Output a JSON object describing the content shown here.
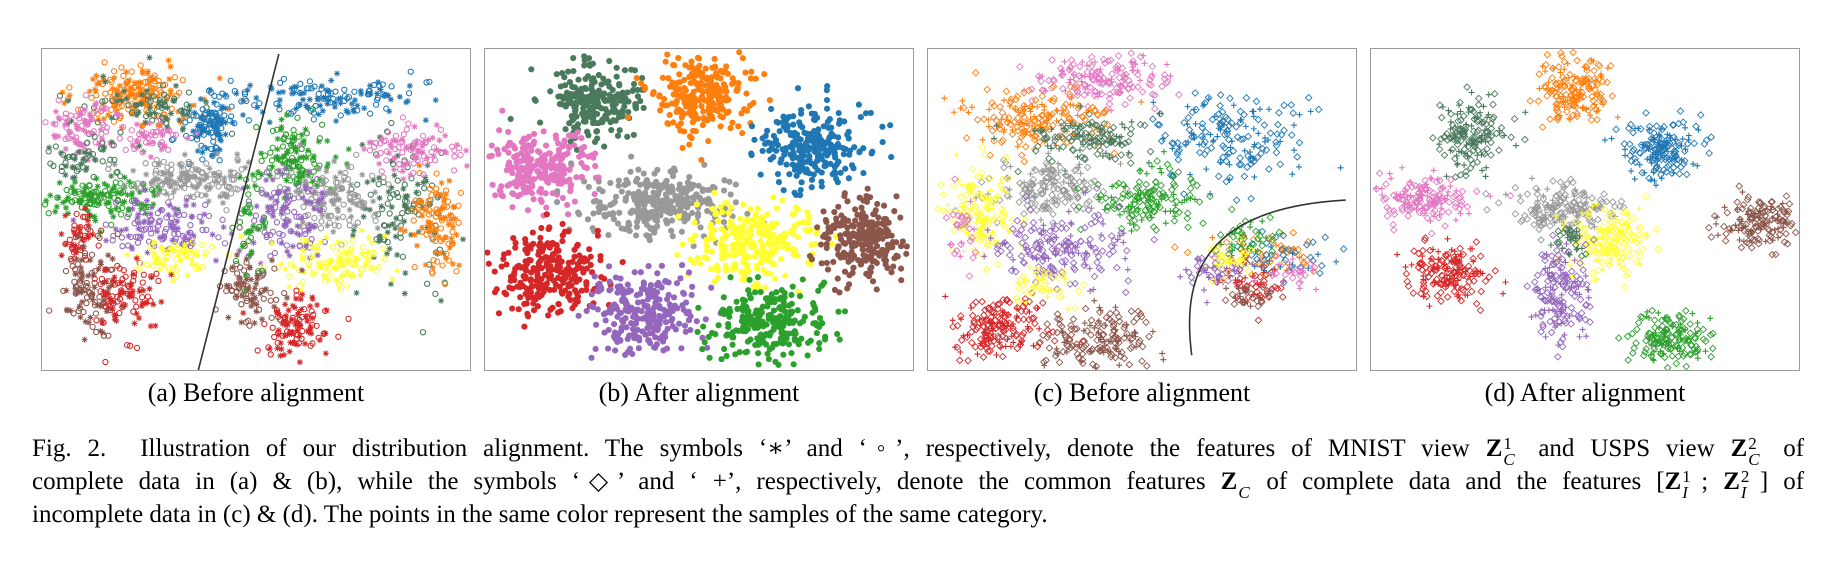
{
  "figure": {
    "panels": [
      {
        "id": "a",
        "caption": "(a) Before alignment",
        "marker_style": "mixed-star-circle",
        "has_separator": true
      },
      {
        "id": "b",
        "caption": "(b) After alignment",
        "marker_style": "filled-dot",
        "has_separator": false
      },
      {
        "id": "c",
        "caption": "(c) Before alignment",
        "marker_style": "diamond-plus",
        "has_separator": true
      },
      {
        "id": "d",
        "caption": "(d) After alignment",
        "marker_style": "diamond-plus",
        "has_separator": false
      }
    ],
    "category_colors": [
      "#1f77b4",
      "#ff7f0e",
      "#2ca02c",
      "#d62728",
      "#9467bd",
      "#8c564b",
      "#e377c2",
      "#999999",
      "#ffff33",
      "#4a7a5c"
    ]
  },
  "caption": {
    "label": "Fig. 2.",
    "line1_text": "Illustration of our distribution alignment. The symbols ‘∗’ and ‘◦’, respectively, denote the features of MNIST view",
    "line1_and": "and USPS view",
    "line1_of": "of",
    "line2_a": "complete data in (a) & (b), while the symbols ‘◇’ and ‘ +’, respectively, denote the common features",
    "line2_b": "of complete data and the features",
    "line2_of": "of",
    "line3": "incomplete data in (c) & (d). The points in the same color represent the samples of the same category.",
    "math": {
      "Z": "Z",
      "C": "C",
      "I": "I",
      "one": "1",
      "two": "2",
      "open": "[",
      "semi": ";",
      "close": "]"
    }
  }
}
